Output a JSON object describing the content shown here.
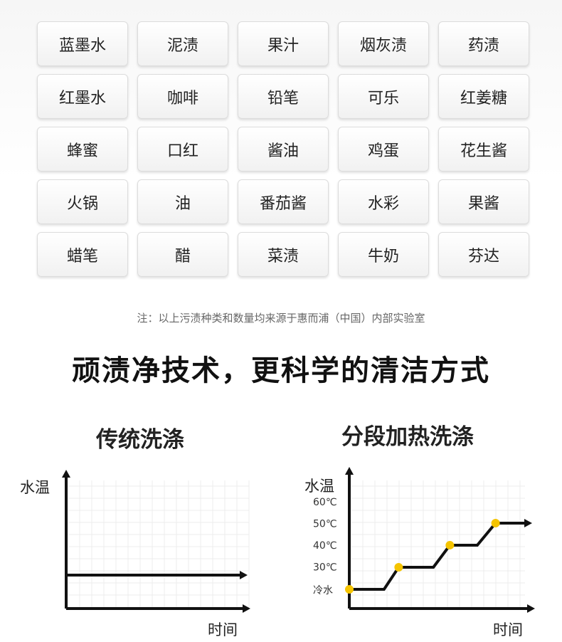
{
  "stains": [
    [
      "蓝墨水",
      "泥渍",
      "果汁",
      "烟灰渍",
      "药渍"
    ],
    [
      "红墨水",
      "咖啡",
      "铅笔",
      "可乐",
      "红姜糖"
    ],
    [
      "蜂蜜",
      "口红",
      "酱油",
      "鸡蛋",
      "花生酱"
    ],
    [
      "火锅",
      "油",
      "番茄酱",
      "水彩",
      "果酱"
    ],
    [
      "蜡笔",
      "醋",
      "菜渍",
      "牛奶",
      "芬达"
    ]
  ],
  "note": "注：以上污渍种类和数量均来源于惠而浦（中国）内部实验室",
  "headline": "顽渍净技术，更科学的清洁方式",
  "chart_data": [
    {
      "type": "line",
      "title": "传统洗涤",
      "xlabel": "时间",
      "ylabel": "水温",
      "yticks": [],
      "grid": true,
      "series": [
        {
          "x": [
            0,
            10
          ],
          "values": [
            0,
            0
          ]
        }
      ],
      "markers": []
    },
    {
      "type": "line",
      "title": "分段加热洗涤",
      "xlabel": "时间",
      "ylabel": "水温",
      "yticks": [
        "冷水",
        "30℃",
        "40℃",
        "50℃",
        "60℃"
      ],
      "grid": true,
      "series": [
        {
          "x": [
            0,
            1.9,
            2.7,
            4.6,
            5.5,
            7.0,
            8.0,
            10
          ],
          "values": [
            0,
            0,
            1,
            1,
            2,
            2,
            3,
            3
          ]
        }
      ],
      "markers": [
        {
          "x": 0,
          "value": 0
        },
        {
          "x": 2.7,
          "value": 1
        },
        {
          "x": 5.5,
          "value": 2
        },
        {
          "x": 8.0,
          "value": 3
        }
      ],
      "marker_color": "#f5c400"
    }
  ]
}
